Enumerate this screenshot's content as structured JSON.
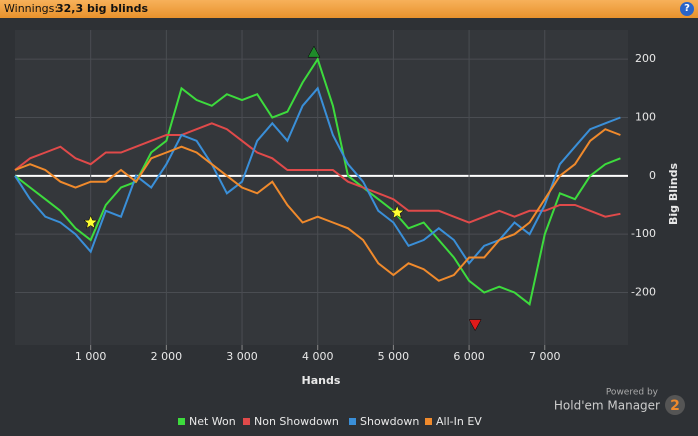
{
  "header": {
    "label": "Winnings:",
    "value": "32,3 big blinds",
    "help": "?"
  },
  "chart_data": {
    "type": "line",
    "x_label": "Hands",
    "y_label": "Big Blinds",
    "x": [
      0,
      200,
      400,
      600,
      800,
      1000,
      1200,
      1400,
      1600,
      1800,
      2000,
      2200,
      2400,
      2600,
      2800,
      3000,
      3200,
      3400,
      3600,
      3800,
      4000,
      4200,
      4400,
      4600,
      4800,
      5000,
      5200,
      5400,
      5600,
      5800,
      6000,
      6200,
      6400,
      6600,
      6800,
      7000,
      7200,
      7400,
      7600,
      7800,
      8000
    ],
    "series": [
      {
        "name": "Net Won",
        "color": "#3ddb3d",
        "values": [
          0,
          -20,
          -40,
          -60,
          -90,
          -110,
          -50,
          -20,
          -10,
          40,
          60,
          150,
          130,
          120,
          140,
          130,
          140,
          100,
          110,
          160,
          200,
          120,
          0,
          -20,
          -40,
          -60,
          -90,
          -80,
          -110,
          -140,
          -180,
          -200,
          -190,
          -200,
          -220,
          -100,
          -30,
          -40,
          0,
          20,
          30
        ]
      },
      {
        "name": "Non Showdown",
        "color": "#e04a4a",
        "values": [
          10,
          30,
          40,
          50,
          30,
          20,
          40,
          40,
          50,
          60,
          70,
          70,
          80,
          90,
          80,
          60,
          40,
          30,
          10,
          10,
          10,
          10,
          -10,
          -20,
          -30,
          -40,
          -60,
          -60,
          -60,
          -70,
          -80,
          -70,
          -60,
          -70,
          -60,
          -60,
          -50,
          -50,
          -60,
          -70,
          -65
        ]
      },
      {
        "name": "Showdown",
        "color": "#3a8fd8",
        "values": [
          0,
          -40,
          -70,
          -80,
          -100,
          -130,
          -60,
          -70,
          0,
          -20,
          20,
          70,
          60,
          20,
          -30,
          -10,
          60,
          90,
          60,
          120,
          150,
          70,
          20,
          -10,
          -60,
          -80,
          -120,
          -110,
          -90,
          -110,
          -150,
          -120,
          -110,
          -80,
          -100,
          -50,
          20,
          50,
          80,
          90,
          100
        ]
      },
      {
        "name": "All-In EV",
        "color": "#f08a2c",
        "values": [
          10,
          20,
          10,
          -10,
          -20,
          -10,
          -10,
          10,
          -10,
          30,
          40,
          50,
          40,
          20,
          0,
          -20,
          -30,
          -10,
          -50,
          -80,
          -70,
          -80,
          -90,
          -110,
          -150,
          -170,
          -150,
          -160,
          -180,
          -170,
          -140,
          -140,
          -110,
          -100,
          -80,
          -40,
          0,
          20,
          60,
          80,
          70
        ]
      }
    ],
    "markers": [
      {
        "x": 1000,
        "y": -80,
        "shape": "star",
        "color": "#ffff33"
      },
      {
        "x": 5050,
        "y": -63,
        "shape": "star",
        "color": "#ffff33"
      },
      {
        "x": 3950,
        "y": 212,
        "shape": "up",
        "color": "#1f8a2a"
      },
      {
        "x": 6080,
        "y": -255,
        "shape": "down",
        "color": "#e01b1b"
      }
    ],
    "xlim": [
      0,
      8100
    ],
    "ylim": [
      -290,
      250
    ],
    "xticks": [
      {
        "value": 1000,
        "label": "1 000"
      },
      {
        "value": 2000,
        "label": "2 000"
      },
      {
        "value": 3000,
        "label": "3 000"
      },
      {
        "value": 4000,
        "label": "4 000"
      },
      {
        "value": 5000,
        "label": "5 000"
      },
      {
        "value": 6000,
        "label": "6 000"
      },
      {
        "value": 7000,
        "label": "7 000"
      }
    ],
    "yticks": [
      200,
      100,
      0,
      -100,
      -200
    ],
    "grid": true,
    "legend": "bottom"
  },
  "branding": {
    "powered": "Powered by",
    "product": "Hold'em Manager",
    "version": "2"
  }
}
